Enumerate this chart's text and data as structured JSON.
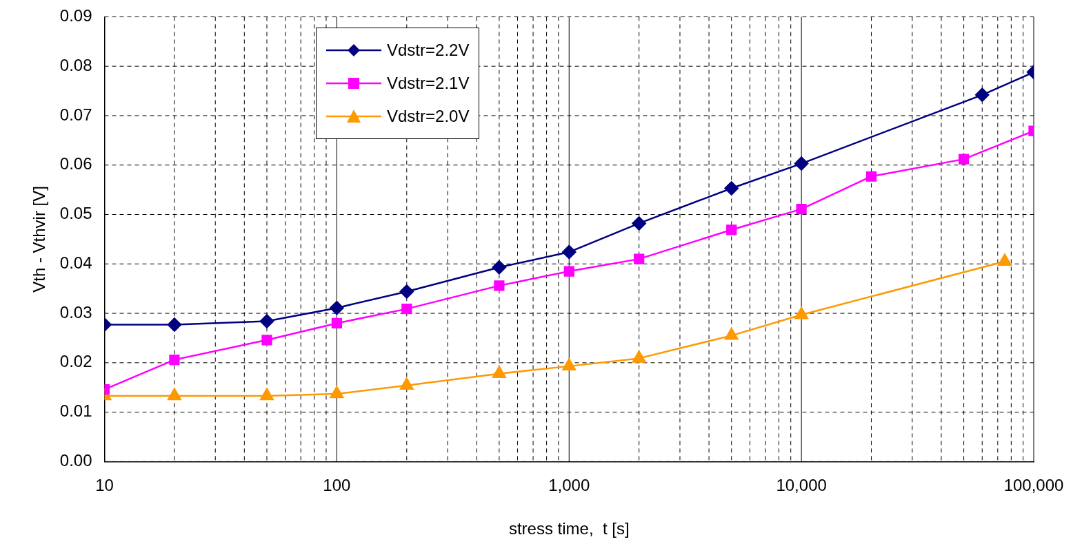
{
  "chart_data": {
    "type": "line",
    "xlabel": "stress time,  t [s]",
    "ylabel": "Vth - Vthvir [V]",
    "log": "x",
    "grid": true,
    "legend": "top left",
    "line_style": "solid",
    "xlim": [
      10,
      100000
    ],
    "xticks": [
      {
        "value": 10,
        "label": "10"
      },
      {
        "value": 20,
        "label": null
      },
      {
        "value": 30,
        "label": null
      },
      {
        "value": 40,
        "label": null
      },
      {
        "value": 50,
        "label": null
      },
      {
        "value": 60,
        "label": null
      },
      {
        "value": 70,
        "label": null
      },
      {
        "value": 80,
        "label": null
      },
      {
        "value": 90,
        "label": null
      },
      {
        "value": 100,
        "label": "100"
      },
      {
        "value": 200,
        "label": null
      },
      {
        "value": 300,
        "label": null
      },
      {
        "value": 400,
        "label": null
      },
      {
        "value": 500,
        "label": null
      },
      {
        "value": 600,
        "label": null
      },
      {
        "value": 700,
        "label": null
      },
      {
        "value": 800,
        "label": null
      },
      {
        "value": 900,
        "label": null
      },
      {
        "value": 1000,
        "label": "1,000"
      },
      {
        "value": 2000,
        "label": null
      },
      {
        "value": 3000,
        "label": null
      },
      {
        "value": 4000,
        "label": null
      },
      {
        "value": 5000,
        "label": null
      },
      {
        "value": 6000,
        "label": null
      },
      {
        "value": 7000,
        "label": null
      },
      {
        "value": 8000,
        "label": null
      },
      {
        "value": 9000,
        "label": null
      },
      {
        "value": 10000,
        "label": "10,000"
      },
      {
        "value": 20000,
        "label": null
      },
      {
        "value": 30000,
        "label": null
      },
      {
        "value": 40000,
        "label": null
      },
      {
        "value": 50000,
        "label": null
      },
      {
        "value": 60000,
        "label": null
      },
      {
        "value": 70000,
        "label": null
      },
      {
        "value": 80000,
        "label": null
      },
      {
        "value": 90000,
        "label": null
      },
      {
        "value": 100000,
        "label": "100,000"
      }
    ],
    "ylim": [
      0,
      0.09
    ],
    "yticks": [
      {
        "value": 0,
        "label": "0.00"
      },
      {
        "value": 0.01,
        "label": "0.01"
      },
      {
        "value": 0.02,
        "label": "0.02"
      },
      {
        "value": 0.03,
        "label": "0.03"
      },
      {
        "value": 0.04,
        "label": "0.04"
      },
      {
        "value": 0.05,
        "label": "0.05"
      },
      {
        "value": 0.06,
        "label": "0.06"
      },
      {
        "value": 0.07,
        "label": "0.07"
      },
      {
        "value": 0.08,
        "label": "0.08"
      },
      {
        "value": 0.09,
        "label": "0.09"
      }
    ],
    "series": [
      {
        "name": "Vdstr=2.2V",
        "color": "#000080",
        "marker": "diamond",
        "x": [
          10,
          20,
          50,
          100,
          200,
          500,
          1000,
          2000,
          5000,
          10000,
          60000,
          100000
        ],
        "values": [
          0.0277,
          0.0277,
          0.0284,
          0.0311,
          0.0344,
          0.0393,
          0.0424,
          0.0482,
          0.0553,
          0.0603,
          0.0742,
          0.0788
        ]
      },
      {
        "name": "Vdstr=2.1V",
        "color": "#ff00ff",
        "marker": "square",
        "x": [
          10,
          20,
          50,
          100,
          200,
          500,
          1000,
          2000,
          5000,
          10000,
          20000,
          50000,
          100000
        ],
        "values": [
          0.0146,
          0.0206,
          0.0246,
          0.028,
          0.0309,
          0.0356,
          0.0385,
          0.041,
          0.0469,
          0.0511,
          0.0577,
          0.0612,
          0.0669
        ]
      },
      {
        "name": "Vdstr=2.0V",
        "color": "#ff9900",
        "marker": "triangle",
        "x": [
          10,
          20,
          50,
          100,
          200,
          500,
          1000,
          2000,
          5000,
          10000,
          75000
        ],
        "values": [
          0.0133,
          0.0133,
          0.0133,
          0.0137,
          0.0154,
          0.0178,
          0.0193,
          0.0209,
          0.0255,
          0.0297,
          0.0405
        ]
      }
    ]
  }
}
